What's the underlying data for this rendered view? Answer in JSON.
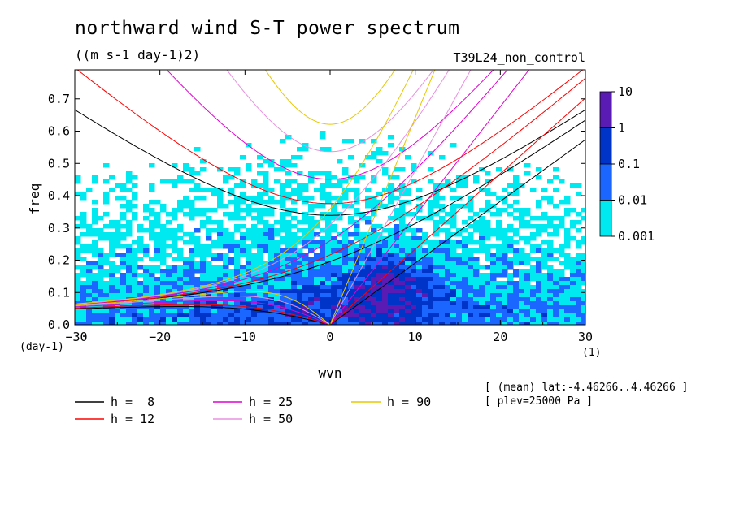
{
  "chart_data": {
    "type": "heatmap",
    "title": "northward wind S-T power spectrum",
    "units": "((m s-1 day-1)2)",
    "experiment": "T39L24_non_control",
    "xlabel": "wvn",
    "ylabel": "freq",
    "x_unit": "(1)",
    "y_unit": "(day-1)",
    "xlim": [
      -30,
      30
    ],
    "ylim": [
      0,
      0.79
    ],
    "x_ticks": [
      -30,
      -20,
      -10,
      0,
      10,
      20,
      30
    ],
    "y_ticks": [
      0.0,
      0.1,
      0.2,
      0.3,
      0.4,
      0.5,
      0.6,
      0.7
    ],
    "colorbar": {
      "levels": [
        "10",
        "1",
        "0.1",
        "0.01",
        "0.001"
      ],
      "colors": [
        "#5a1ab4",
        "#0033c8",
        "#1a66ff",
        "#00e8f0"
      ]
    },
    "dispersion_curves": [
      {
        "label": "h =  8",
        "h": 8,
        "color": "#000000"
      },
      {
        "label": "h = 12",
        "h": 12,
        "color": "#ff0000"
      },
      {
        "label": "h = 25",
        "h": 25,
        "color": "#e000d0"
      },
      {
        "label": "h = 50",
        "h": 50,
        "color": "#e890e0"
      },
      {
        "label": "h = 90",
        "h": 90,
        "color": "#e8c800"
      }
    ],
    "annotations": [
      "[ (mean) lat:-4.46266..4.46266 ]",
      "[ plev=25000 Pa ]"
    ]
  }
}
